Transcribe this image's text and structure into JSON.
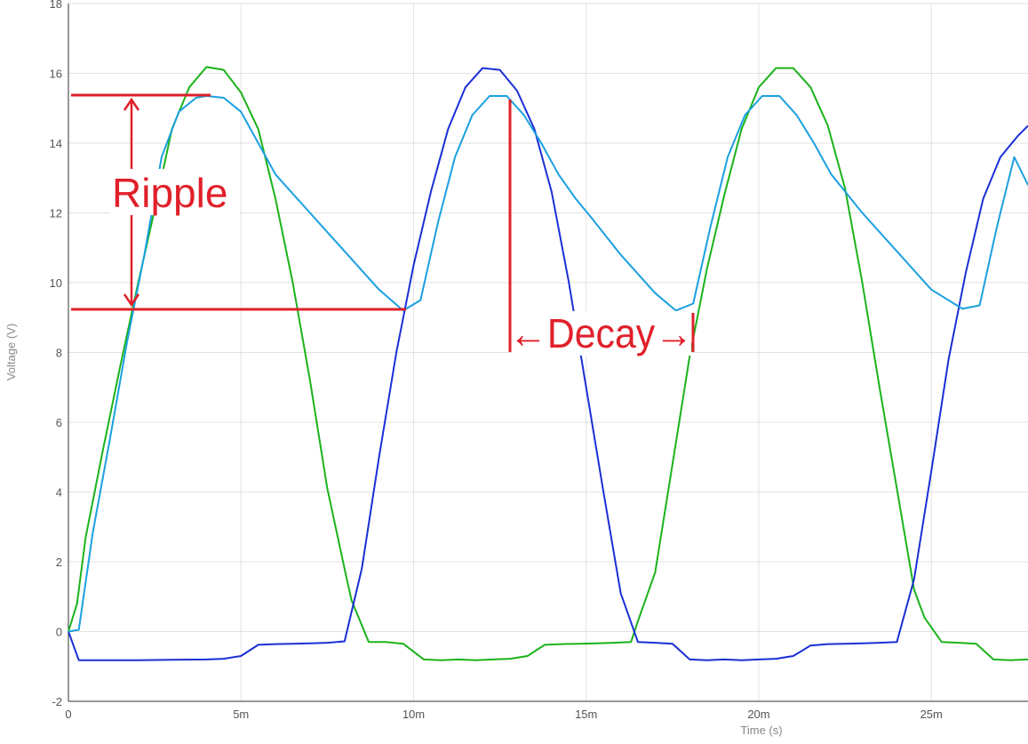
{
  "chart_data": {
    "type": "line",
    "title": "",
    "xlabel": "Time (s)",
    "ylabel": "Voltage (V)",
    "xlim": [
      0,
      0.0278
    ],
    "ylim": [
      -2,
      18
    ],
    "grid": true,
    "x_ticks": [
      {
        "value": 0,
        "label": "0"
      },
      {
        "value": 0.005,
        "label": "5m"
      },
      {
        "value": 0.01,
        "label": "10m"
      },
      {
        "value": 0.015,
        "label": "15m"
      },
      {
        "value": 0.02,
        "label": "20m"
      },
      {
        "value": 0.025,
        "label": "25m"
      }
    ],
    "y_ticks": [
      {
        "value": -2,
        "label": "-2"
      },
      {
        "value": 0,
        "label": "0"
      },
      {
        "value": 2,
        "label": "2"
      },
      {
        "value": 4,
        "label": "4"
      },
      {
        "value": 6,
        "label": "6"
      },
      {
        "value": 8,
        "label": "8"
      },
      {
        "value": 10,
        "label": "10"
      },
      {
        "value": 12,
        "label": "12"
      },
      {
        "value": 14,
        "label": "14"
      },
      {
        "value": 16,
        "label": "16"
      },
      {
        "value": 18,
        "label": "18"
      }
    ],
    "series": [
      {
        "color": "#1ab31a",
        "x": [
          0,
          0.00025,
          0.0005,
          0.001,
          0.0015,
          0.002,
          0.0025,
          0.003,
          0.0035,
          0.004,
          0.0045,
          0.005,
          0.0055,
          0.006,
          0.0065,
          0.007,
          0.0075,
          0.008,
          0.0082,
          0.0087,
          0.0092,
          0.0097,
          0.0103,
          0.0108,
          0.0113,
          0.0118,
          0.0123,
          0.0128,
          0.0133,
          0.0138,
          0.0143,
          0.0148,
          0.0153,
          0.0158,
          0.0163,
          0.0165,
          0.017,
          0.0175,
          0.018,
          0.0185,
          0.019,
          0.0195,
          0.02,
          0.0205,
          0.021,
          0.0215,
          0.022,
          0.0225,
          0.023,
          0.0235,
          0.024,
          0.0245,
          0.0248,
          0.0253,
          0.0258,
          0.0263,
          0.0268,
          0.0273,
          0.0278
        ],
        "y": [
          0,
          0.8,
          2.7,
          5.2,
          7.6,
          9.9,
          12.1,
          14.4,
          15.6,
          16.18,
          16.1,
          15.45,
          14.4,
          12.4,
          10.0,
          7.2,
          4.1,
          1.8,
          0.9,
          -0.3,
          -0.3,
          -0.35,
          -0.8,
          -0.82,
          -0.8,
          -0.82,
          -0.8,
          -0.78,
          -0.7,
          -0.38,
          -0.36,
          -0.35,
          -0.34,
          -0.32,
          -0.3,
          0.3,
          1.7,
          4.8,
          7.9,
          10.4,
          12.5,
          14.4,
          15.6,
          16.15,
          16.15,
          15.6,
          14.5,
          12.7,
          10.0,
          7.0,
          4.1,
          1.2,
          0.4,
          -0.3,
          -0.32,
          -0.35,
          -0.8,
          -0.82,
          -0.8
        ]
      },
      {
        "color": "#1a2fd6",
        "x": [
          0,
          0.0003,
          0.001,
          0.002,
          0.003,
          0.004,
          0.0045,
          0.005,
          0.0055,
          0.006,
          0.0065,
          0.007,
          0.0075,
          0.008,
          0.0085,
          0.009,
          0.0095,
          0.01,
          0.0105,
          0.011,
          0.0115,
          0.012,
          0.0125,
          0.013,
          0.0135,
          0.014,
          0.0145,
          0.015,
          0.0155,
          0.016,
          0.0165,
          0.017,
          0.0175,
          0.018,
          0.0185,
          0.019,
          0.0195,
          0.02,
          0.0205,
          0.021,
          0.0215,
          0.022,
          0.0225,
          0.023,
          0.0235,
          0.024,
          0.0245,
          0.025,
          0.0255,
          0.026,
          0.0265,
          0.027,
          0.0275,
          0.0278
        ],
        "y": [
          0,
          -0.82,
          -0.82,
          -0.82,
          -0.81,
          -0.8,
          -0.78,
          -0.7,
          -0.38,
          -0.36,
          -0.35,
          -0.34,
          -0.32,
          -0.28,
          1.8,
          5.0,
          8.0,
          10.5,
          12.6,
          14.4,
          15.6,
          16.15,
          16.1,
          15.5,
          14.4,
          12.6,
          10.0,
          7.0,
          4.0,
          1.1,
          -0.3,
          -0.32,
          -0.35,
          -0.8,
          -0.82,
          -0.8,
          -0.82,
          -0.8,
          -0.78,
          -0.7,
          -0.4,
          -0.36,
          -0.35,
          -0.34,
          -0.32,
          -0.3,
          1.5,
          4.6,
          7.8,
          10.3,
          12.4,
          13.6,
          14.2,
          14.5
        ]
      },
      {
        "color": "#1aa0e0",
        "x": [
          0,
          0.0003,
          0.0007,
          0.0012,
          0.0017,
          0.0022,
          0.0027,
          0.0032,
          0.0037,
          0.004,
          0.0045,
          0.005,
          0.0055,
          0.006,
          0.007,
          0.008,
          0.009,
          0.0097,
          0.0102,
          0.0107,
          0.0112,
          0.0117,
          0.0122,
          0.0127,
          0.0132,
          0.0137,
          0.0142,
          0.0147,
          0.0152,
          0.016,
          0.017,
          0.0176,
          0.0181,
          0.0186,
          0.0191,
          0.0196,
          0.0201,
          0.0206,
          0.0211,
          0.0216,
          0.0221,
          0.023,
          0.024,
          0.025,
          0.0259,
          0.0264,
          0.0269,
          0.0274,
          0.0278
        ],
        "y": [
          0,
          0.05,
          2.8,
          5.5,
          8.3,
          10.8,
          13.6,
          14.9,
          15.3,
          15.35,
          15.3,
          14.9,
          14.0,
          13.1,
          12.0,
          10.9,
          9.8,
          9.2,
          9.5,
          11.7,
          13.6,
          14.8,
          15.35,
          15.35,
          14.8,
          14.0,
          13.1,
          12.4,
          11.8,
          10.8,
          9.7,
          9.2,
          9.4,
          11.6,
          13.6,
          14.8,
          15.35,
          15.35,
          14.8,
          14.0,
          13.1,
          12.0,
          10.9,
          9.8,
          9.25,
          9.35,
          11.6,
          13.6,
          12.8
        ]
      }
    ],
    "annotations": {
      "ripple_label": "Ripple",
      "decay_label": "←Decay→",
      "color": "#e0202a"
    }
  }
}
